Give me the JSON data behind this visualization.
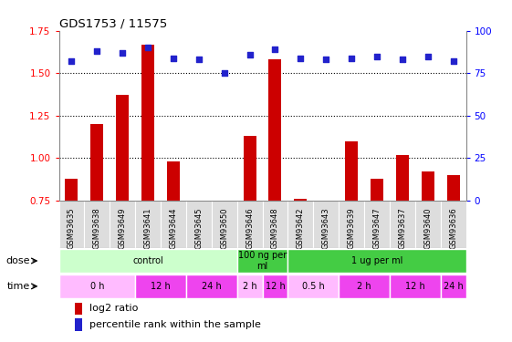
{
  "title": "GDS1753 / 11575",
  "samples": [
    "GSM93635",
    "GSM93638",
    "GSM93649",
    "GSM93641",
    "GSM93644",
    "GSM93645",
    "GSM93650",
    "GSM93646",
    "GSM93648",
    "GSM93642",
    "GSM93643",
    "GSM93639",
    "GSM93647",
    "GSM93637",
    "GSM93640",
    "GSM93636"
  ],
  "log2_ratio": [
    0.88,
    1.2,
    1.37,
    1.67,
    0.98,
    0.75,
    0.75,
    1.13,
    1.58,
    0.76,
    0.75,
    1.1,
    0.88,
    1.02,
    0.92,
    0.9
  ],
  "pct_rank": [
    82,
    88,
    87,
    90,
    84,
    83,
    75,
    86,
    89,
    84,
    83,
    84,
    85,
    83,
    85,
    82
  ],
  "bar_color": "#cc0000",
  "dot_color": "#2222cc",
  "ylim_left": [
    0.75,
    1.75
  ],
  "yticks_left": [
    0.75,
    1.0,
    1.25,
    1.5,
    1.75
  ],
  "ylim_right": [
    0,
    100
  ],
  "yticks_right": [
    0,
    25,
    50,
    75,
    100
  ],
  "hlines": [
    1.0,
    1.25,
    1.5
  ],
  "dose_groups": [
    {
      "label": "control",
      "start": 0,
      "end": 7,
      "color": "#ccffcc"
    },
    {
      "label": "100 ng per\nml",
      "start": 7,
      "end": 9,
      "color": "#44cc44"
    },
    {
      "label": "1 ug per ml",
      "start": 9,
      "end": 16,
      "color": "#44cc44"
    }
  ],
  "time_groups": [
    {
      "label": "0 h",
      "start": 0,
      "end": 3,
      "color": "#ffbbff"
    },
    {
      "label": "12 h",
      "start": 3,
      "end": 5,
      "color": "#ee44ee"
    },
    {
      "label": "24 h",
      "start": 5,
      "end": 7,
      "color": "#ee44ee"
    },
    {
      "label": "2 h",
      "start": 7,
      "end": 8,
      "color": "#ffbbff"
    },
    {
      "label": "12 h",
      "start": 8,
      "end": 9,
      "color": "#ee44ee"
    },
    {
      "label": "0.5 h",
      "start": 9,
      "end": 11,
      "color": "#ffbbff"
    },
    {
      "label": "2 h",
      "start": 11,
      "end": 13,
      "color": "#ee44ee"
    },
    {
      "label": "12 h",
      "start": 13,
      "end": 15,
      "color": "#ee44ee"
    },
    {
      "label": "24 h",
      "start": 15,
      "end": 16,
      "color": "#ee44ee"
    }
  ],
  "dose_label": "dose",
  "time_label": "time",
  "legend_bar": "log2 ratio",
  "legend_dot": "percentile rank within the sample",
  "bg_color": "#ffffff",
  "plot_bg": "#ffffff",
  "xtick_bg": "#dddddd",
  "spine_color": "#888888"
}
